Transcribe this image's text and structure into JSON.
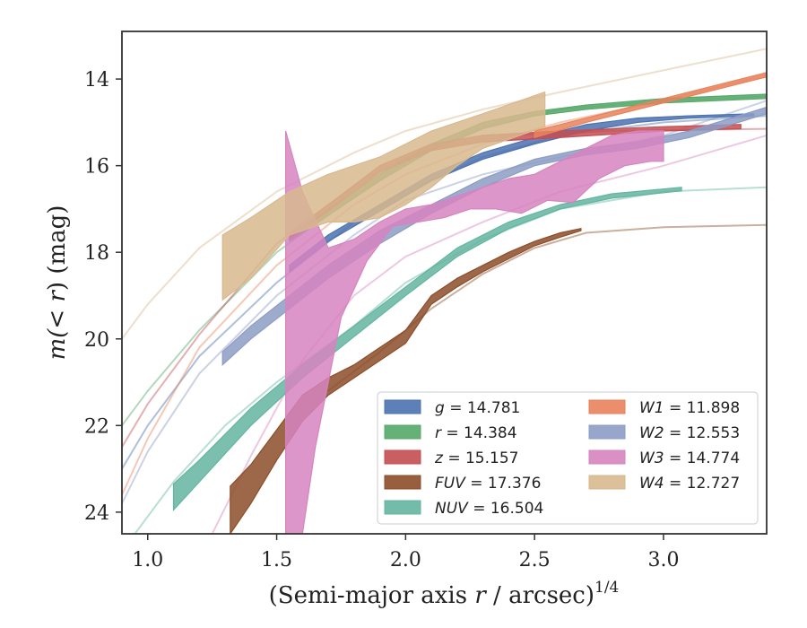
{
  "chart_data": {
    "type": "line",
    "xlabel": "(Semi-major axis r / arcsec)",
    "xlabel_italic_var": "r",
    "xlabel_prefix": "(Semi-major axis ",
    "xlabel_suffix": " / arcsec)",
    "xlabel_exponent": "1/4",
    "ylabel_prefix": "m(",
    "ylabel_mid": "< r",
    "ylabel_suffix": ") (mag)",
    "xlim": [
      0.9,
      3.4
    ],
    "ylim": [
      24.5,
      12.9
    ],
    "y_inverted": true,
    "xticks": [
      1.0,
      1.5,
      2.0,
      2.5,
      3.0
    ],
    "xtick_labels": [
      "1.0",
      "1.5",
      "2.0",
      "2.5",
      "3.0"
    ],
    "yticks": [
      14,
      16,
      18,
      20,
      22,
      24
    ],
    "ytick_labels": [
      "14",
      "16",
      "18",
      "20",
      "22",
      "24"
    ],
    "grid": false,
    "legend_position": "lower-right",
    "series": [
      {
        "name": "g = 14.781",
        "label_var": "g",
        "label_val": "= 14.781",
        "color": "#4c72b0",
        "model": [
          [
            0.9,
            23.0
          ],
          [
            1.0,
            22.0
          ],
          [
            1.2,
            20.4
          ],
          [
            1.5,
            18.7
          ],
          [
            1.8,
            17.3
          ],
          [
            2.0,
            16.6
          ],
          [
            2.3,
            15.8
          ],
          [
            2.6,
            15.3
          ],
          [
            3.0,
            15.0
          ],
          [
            3.4,
            14.85
          ]
        ],
        "band_upper": [
          [
            1.55,
            18.3
          ],
          [
            1.7,
            17.6
          ],
          [
            1.9,
            16.9
          ],
          [
            2.1,
            16.2
          ],
          [
            2.3,
            15.7
          ],
          [
            2.5,
            15.35
          ],
          [
            2.7,
            15.05
          ],
          [
            2.9,
            14.9
          ],
          [
            3.1,
            14.85
          ],
          [
            3.35,
            14.8
          ]
        ],
        "band_lower": [
          [
            1.55,
            18.45
          ],
          [
            1.7,
            17.75
          ],
          [
            1.9,
            17.05
          ],
          [
            2.1,
            16.35
          ],
          [
            2.3,
            15.85
          ],
          [
            2.5,
            15.5
          ],
          [
            2.7,
            15.2
          ],
          [
            2.9,
            15.0
          ],
          [
            3.1,
            14.9
          ],
          [
            3.35,
            14.85
          ]
        ]
      },
      {
        "name": "r = 14.384",
        "label_var": "r",
        "label_val": "= 14.384",
        "color": "#55a868",
        "model": [
          [
            0.9,
            22.0
          ],
          [
            1.0,
            21.2
          ],
          [
            1.2,
            19.8
          ],
          [
            1.5,
            18.0
          ],
          [
            1.8,
            16.7
          ],
          [
            2.0,
            15.9
          ],
          [
            2.3,
            15.1
          ],
          [
            2.6,
            14.7
          ],
          [
            3.0,
            14.5
          ],
          [
            3.4,
            14.4
          ]
        ],
        "band_upper": [
          [
            1.55,
            17.6
          ],
          [
            1.7,
            17.0
          ],
          [
            1.9,
            16.2
          ],
          [
            2.1,
            15.5
          ],
          [
            2.3,
            15.0
          ],
          [
            2.5,
            14.75
          ],
          [
            2.7,
            14.6
          ],
          [
            3.0,
            14.45
          ],
          [
            3.4,
            14.35
          ]
        ],
        "band_lower": [
          [
            1.55,
            17.75
          ],
          [
            1.7,
            17.15
          ],
          [
            1.9,
            16.35
          ],
          [
            2.1,
            15.65
          ],
          [
            2.3,
            15.15
          ],
          [
            2.5,
            14.85
          ],
          [
            2.7,
            14.7
          ],
          [
            3.0,
            14.55
          ],
          [
            3.4,
            14.45
          ]
        ]
      },
      {
        "name": "z = 15.157",
        "label_var": "z",
        "label_val": "= 15.157",
        "color": "#c44e52",
        "model": [
          [
            0.9,
            22.5
          ],
          [
            1.0,
            21.5
          ],
          [
            1.2,
            19.9
          ],
          [
            1.5,
            17.8
          ],
          [
            1.7,
            16.9
          ],
          [
            1.9,
            16.1
          ],
          [
            2.1,
            15.6
          ],
          [
            2.4,
            15.3
          ],
          [
            2.8,
            15.2
          ],
          [
            3.4,
            15.15
          ]
        ],
        "band_upper": [
          [
            1.55,
            17.55
          ],
          [
            1.7,
            16.9
          ],
          [
            1.9,
            16.0
          ],
          [
            2.1,
            15.5
          ],
          [
            2.3,
            15.3
          ],
          [
            2.6,
            15.2
          ],
          [
            3.0,
            15.1
          ],
          [
            3.3,
            15.05
          ]
        ],
        "band_lower": [
          [
            1.55,
            17.7
          ],
          [
            1.7,
            17.05
          ],
          [
            1.9,
            16.15
          ],
          [
            2.1,
            15.65
          ],
          [
            2.3,
            15.45
          ],
          [
            2.6,
            15.35
          ],
          [
            3.0,
            15.2
          ],
          [
            3.3,
            15.15
          ]
        ]
      },
      {
        "name": "FUV = 17.376",
        "label_var": "FUV",
        "label_val": "= 17.376",
        "color": "#8c4e2a",
        "model": [
          [
            1.7,
            21.2
          ],
          [
            1.9,
            20.3
          ],
          [
            2.1,
            19.3
          ],
          [
            2.3,
            18.5
          ],
          [
            2.5,
            17.9
          ],
          [
            2.7,
            17.55
          ],
          [
            3.0,
            17.42
          ],
          [
            3.4,
            17.37
          ]
        ],
        "band_upper": [
          [
            1.32,
            23.4
          ],
          [
            1.4,
            22.9
          ],
          [
            1.5,
            22.1
          ],
          [
            1.6,
            21.3
          ],
          [
            1.7,
            20.9
          ],
          [
            1.8,
            20.6
          ],
          [
            1.9,
            20.2
          ],
          [
            2.0,
            19.8
          ],
          [
            2.1,
            19.0
          ],
          [
            2.2,
            18.6
          ],
          [
            2.3,
            18.3
          ],
          [
            2.4,
            18.0
          ],
          [
            2.5,
            17.75
          ],
          [
            2.6,
            17.55
          ],
          [
            2.68,
            17.45
          ]
        ],
        "band_lower": [
          [
            1.32,
            24.5
          ],
          [
            1.4,
            23.8
          ],
          [
            1.5,
            22.8
          ],
          [
            1.6,
            21.9
          ],
          [
            1.7,
            21.3
          ],
          [
            1.8,
            20.9
          ],
          [
            1.9,
            20.5
          ],
          [
            2.0,
            20.1
          ],
          [
            2.1,
            19.2
          ],
          [
            2.2,
            18.8
          ],
          [
            2.3,
            18.45
          ],
          [
            2.4,
            18.15
          ],
          [
            2.5,
            17.85
          ],
          [
            2.6,
            17.65
          ],
          [
            2.68,
            17.5
          ]
        ]
      },
      {
        "name": "NUV = 16.504",
        "label_var": "NUV",
        "label_val": "= 16.504",
        "color": "#64b5a0",
        "model": [
          [
            0.95,
            24.5
          ],
          [
            1.1,
            23.3
          ],
          [
            1.3,
            22.0
          ],
          [
            1.5,
            21.0
          ],
          [
            1.8,
            19.7
          ],
          [
            2.0,
            18.7
          ],
          [
            2.3,
            17.7
          ],
          [
            2.6,
            17.0
          ],
          [
            3.0,
            16.6
          ],
          [
            3.4,
            16.5
          ]
        ],
        "band_upper": [
          [
            1.1,
            23.35
          ],
          [
            1.2,
            22.8
          ],
          [
            1.4,
            21.6
          ],
          [
            1.6,
            20.6
          ],
          [
            1.8,
            19.7
          ],
          [
            2.0,
            18.8
          ],
          [
            2.2,
            17.9
          ],
          [
            2.4,
            17.3
          ],
          [
            2.6,
            16.9
          ],
          [
            2.8,
            16.65
          ],
          [
            3.07,
            16.5
          ]
        ],
        "band_lower": [
          [
            1.1,
            23.95
          ],
          [
            1.2,
            23.3
          ],
          [
            1.4,
            22.0
          ],
          [
            1.6,
            20.9
          ],
          [
            1.8,
            19.95
          ],
          [
            2.0,
            19.0
          ],
          [
            2.2,
            18.1
          ],
          [
            2.4,
            17.45
          ],
          [
            2.6,
            17.0
          ],
          [
            2.8,
            16.75
          ],
          [
            3.07,
            16.58
          ]
        ]
      },
      {
        "name": "W1 = 11.898",
        "label_var": "W1",
        "label_val": "= 11.898",
        "color": "#e8825c",
        "model": [
          [
            0.9,
            23.6
          ],
          [
            1.0,
            22.3
          ],
          [
            1.2,
            20.2
          ],
          [
            1.5,
            18.3
          ],
          [
            1.8,
            16.9
          ],
          [
            2.0,
            16.2
          ],
          [
            2.3,
            15.5
          ],
          [
            2.6,
            15.0
          ],
          [
            3.0,
            14.5
          ],
          [
            3.4,
            13.9
          ]
        ],
        "band_upper": [
          [
            2.5,
            15.2
          ],
          [
            2.7,
            14.9
          ],
          [
            2.9,
            14.6
          ],
          [
            3.1,
            14.3
          ],
          [
            3.3,
            14.0
          ],
          [
            3.4,
            13.85
          ]
        ],
        "band_lower": [
          [
            2.5,
            15.35
          ],
          [
            2.7,
            15.0
          ],
          [
            2.9,
            14.7
          ],
          [
            3.1,
            14.4
          ],
          [
            3.3,
            14.1
          ],
          [
            3.4,
            13.95
          ]
        ]
      },
      {
        "name": "W2 = 12.553",
        "label_var": "W2",
        "label_val": "= 12.553",
        "color": "#8c9cc4",
        "model": [
          [
            0.9,
            23.8
          ],
          [
            1.0,
            22.6
          ],
          [
            1.2,
            20.8
          ],
          [
            1.5,
            19.0
          ],
          [
            1.8,
            17.6
          ],
          [
            2.0,
            16.8
          ],
          [
            2.3,
            16.2
          ],
          [
            2.6,
            15.8
          ],
          [
            3.0,
            15.3
          ],
          [
            3.4,
            14.5
          ]
        ],
        "band_upper": [
          [
            1.29,
            20.3
          ],
          [
            1.4,
            19.7
          ],
          [
            1.55,
            19.0
          ],
          [
            1.7,
            18.3
          ],
          [
            1.9,
            17.5
          ],
          [
            2.1,
            16.9
          ],
          [
            2.3,
            16.3
          ],
          [
            2.5,
            15.85
          ],
          [
            2.7,
            15.6
          ],
          [
            2.9,
            15.45
          ],
          [
            3.1,
            15.2
          ],
          [
            3.4,
            14.65
          ]
        ],
        "band_lower": [
          [
            1.29,
            20.6
          ],
          [
            1.4,
            20.0
          ],
          [
            1.55,
            19.3
          ],
          [
            1.7,
            18.6
          ],
          [
            1.9,
            17.8
          ],
          [
            2.1,
            17.1
          ],
          [
            2.3,
            16.5
          ],
          [
            2.5,
            16.0
          ],
          [
            2.7,
            15.75
          ],
          [
            2.9,
            15.6
          ],
          [
            3.1,
            15.35
          ],
          [
            3.4,
            14.8
          ]
        ]
      },
      {
        "name": "W3 = 14.774",
        "label_var": "W3",
        "label_val": "= 14.774",
        "color": "#d684bf",
        "model": [
          [
            1.25,
            24.5
          ],
          [
            1.4,
            22.7
          ],
          [
            1.6,
            20.5
          ],
          [
            1.8,
            19.0
          ],
          [
            2.0,
            18.1
          ],
          [
            2.3,
            17.3
          ],
          [
            2.6,
            16.6
          ],
          [
            3.0,
            16.0
          ],
          [
            3.4,
            15.3
          ]
        ],
        "band_upper": [
          [
            1.535,
            15.2
          ],
          [
            1.6,
            16.6
          ],
          [
            1.7,
            17.9
          ],
          [
            1.8,
            17.7
          ],
          [
            1.9,
            17.3
          ],
          [
            2.0,
            17.0
          ],
          [
            2.1,
            16.9
          ],
          [
            2.2,
            16.7
          ],
          [
            2.3,
            16.5
          ],
          [
            2.4,
            16.3
          ],
          [
            2.5,
            16.2
          ],
          [
            2.6,
            15.9
          ],
          [
            2.7,
            15.6
          ],
          [
            2.8,
            15.3
          ],
          [
            2.9,
            15.2
          ],
          [
            3.0,
            15.2
          ]
        ],
        "band_lower": [
          [
            1.535,
            24.5
          ],
          [
            1.6,
            24.5
          ],
          [
            1.65,
            22.5
          ],
          [
            1.75,
            19.5
          ],
          [
            1.85,
            18.2
          ],
          [
            1.95,
            17.4
          ],
          [
            2.05,
            17.3
          ],
          [
            2.15,
            17.2
          ],
          [
            2.25,
            17.0
          ],
          [
            2.35,
            17.0
          ],
          [
            2.45,
            17.1
          ],
          [
            2.55,
            16.8
          ],
          [
            2.65,
            16.85
          ],
          [
            2.75,
            16.3
          ],
          [
            2.85,
            16.0
          ],
          [
            2.95,
            15.9
          ],
          [
            3.0,
            15.9
          ]
        ]
      },
      {
        "name": "W4 = 12.727",
        "label_var": "W4",
        "label_val": "= 12.727",
        "color": "#d8b98e",
        "model": [
          [
            0.9,
            20.0
          ],
          [
            1.0,
            19.2
          ],
          [
            1.2,
            17.9
          ],
          [
            1.5,
            16.6
          ],
          [
            1.8,
            15.7
          ],
          [
            2.0,
            15.2
          ],
          [
            2.3,
            14.7
          ],
          [
            2.6,
            14.3
          ],
          [
            3.0,
            13.8
          ],
          [
            3.4,
            13.3
          ]
        ],
        "band_upper": [
          [
            1.29,
            17.6
          ],
          [
            1.4,
            17.2
          ],
          [
            1.55,
            16.6
          ],
          [
            1.7,
            16.2
          ],
          [
            1.9,
            15.8
          ],
          [
            2.1,
            15.2
          ],
          [
            2.3,
            14.8
          ],
          [
            2.54,
            14.3
          ]
        ],
        "band_lower": [
          [
            1.29,
            19.1
          ],
          [
            1.4,
            18.6
          ],
          [
            1.55,
            17.6
          ],
          [
            1.7,
            17.3
          ],
          [
            1.8,
            17.3
          ],
          [
            1.9,
            17.2
          ],
          [
            2.0,
            16.9
          ],
          [
            2.1,
            16.5
          ],
          [
            2.2,
            16.0
          ],
          [
            2.3,
            15.6
          ],
          [
            2.54,
            15.1
          ]
        ]
      }
    ]
  }
}
